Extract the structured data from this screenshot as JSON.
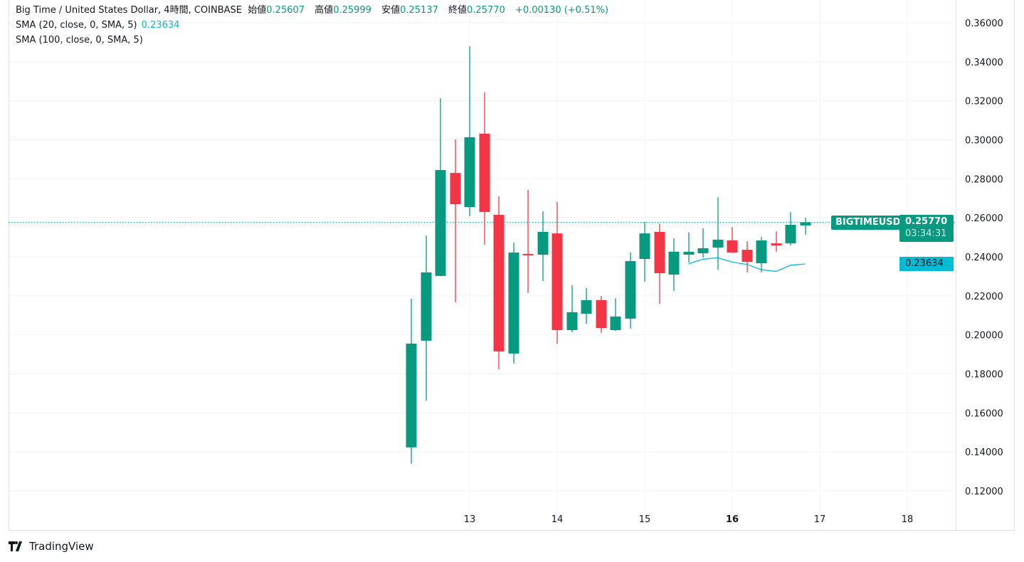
{
  "header": {
    "symbol_title": "Big Time / United States Dollar, 4時間, COINBASE",
    "open_label": "始値",
    "open": "0.25607",
    "high_label": "高値",
    "high": "0.25999",
    "low_label": "安値",
    "low": "0.25137",
    "close_label": "終値",
    "close": "0.25770",
    "change": "+0.00130 (+0.51%)"
  },
  "indicators": [
    {
      "label": "SMA (20, close, 0, SMA, 5)",
      "value": "0.23634"
    },
    {
      "label": "SMA (100, close, 0, SMA, 5)",
      "value": ""
    }
  ],
  "price_tag": {
    "symbol": "BIGTIMEUSD",
    "price": "0.25770",
    "countdown": "03:34:31"
  },
  "sma_tag": "0.23634",
  "brand": "TradingView",
  "colors": {
    "up": "#089981",
    "down": "#f23645",
    "sma20": "#00bcd4",
    "grid": "#f0f3fa"
  },
  "chart_data": {
    "type": "candlestick",
    "interval": "4h",
    "ylim": [
      0.11,
      0.365
    ],
    "y_ticks": [
      "0.36000",
      "0.34000",
      "0.32000",
      "0.30000",
      "0.28000",
      "0.26000",
      "0.24000",
      "0.22000",
      "0.20000",
      "0.18000",
      "0.16000",
      "0.14000",
      "0.12000"
    ],
    "x_ticks": [
      {
        "label": "13",
        "day": 13,
        "bold": false
      },
      {
        "label": "14",
        "day": 14,
        "bold": false
      },
      {
        "label": "15",
        "day": 15,
        "bold": false
      },
      {
        "label": "16",
        "day": 16,
        "bold": true
      },
      {
        "label": "17",
        "day": 17,
        "bold": false
      },
      {
        "label": "18",
        "day": 18,
        "bold": false
      }
    ],
    "grid": true,
    "candles": [
      {
        "t": "12 08:00",
        "o": 0.1423,
        "h": 0.2185,
        "l": 0.1339,
        "c": 0.1955
      },
      {
        "t": "12 12:00",
        "o": 0.197,
        "h": 0.2509,
        "l": 0.1663,
        "c": 0.232
      },
      {
        "t": "12 16:00",
        "o": 0.2302,
        "h": 0.3213,
        "l": 0.23,
        "c": 0.2845
      },
      {
        "t": "12 20:00",
        "o": 0.283,
        "h": 0.3002,
        "l": 0.2167,
        "c": 0.267
      },
      {
        "t": "13 00:00",
        "o": 0.2655,
        "h": 0.348,
        "l": 0.2608,
        "c": 0.3013
      },
      {
        "t": "13 04:00",
        "o": 0.3031,
        "h": 0.3243,
        "l": 0.2462,
        "c": 0.263
      },
      {
        "t": "13 08:00",
        "o": 0.2615,
        "h": 0.271,
        "l": 0.1824,
        "c": 0.1915
      },
      {
        "t": "13 12:00",
        "o": 0.1904,
        "h": 0.2473,
        "l": 0.1853,
        "c": 0.2422
      },
      {
        "t": "13 16:00",
        "o": 0.2415,
        "h": 0.2743,
        "l": 0.2214,
        "c": 0.2408
      },
      {
        "t": "13 20:00",
        "o": 0.2411,
        "h": 0.2633,
        "l": 0.2276,
        "c": 0.2528
      },
      {
        "t": "14 00:00",
        "o": 0.252,
        "h": 0.2681,
        "l": 0.1955,
        "c": 0.2024
      },
      {
        "t": "14 04:00",
        "o": 0.2024,
        "h": 0.2254,
        "l": 0.2013,
        "c": 0.2116
      },
      {
        "t": "14 08:00",
        "o": 0.2108,
        "h": 0.224,
        "l": 0.2057,
        "c": 0.2178
      },
      {
        "t": "14 12:00",
        "o": 0.2178,
        "h": 0.2199,
        "l": 0.201,
        "c": 0.2035
      },
      {
        "t": "14 16:00",
        "o": 0.2024,
        "h": 0.2188,
        "l": 0.202,
        "c": 0.2094
      },
      {
        "t": "14 20:00",
        "o": 0.2083,
        "h": 0.2422,
        "l": 0.2032,
        "c": 0.2378
      },
      {
        "t": "15 00:00",
        "o": 0.2389,
        "h": 0.2579,
        "l": 0.2272,
        "c": 0.252
      },
      {
        "t": "15 04:00",
        "o": 0.2528,
        "h": 0.2571,
        "l": 0.2159,
        "c": 0.2316
      },
      {
        "t": "15 08:00",
        "o": 0.2309,
        "h": 0.2495,
        "l": 0.2225,
        "c": 0.2426
      },
      {
        "t": "15 12:00",
        "o": 0.2411,
        "h": 0.2524,
        "l": 0.2371,
        "c": 0.2426
      },
      {
        "t": "15 16:00",
        "o": 0.2418,
        "h": 0.2546,
        "l": 0.2396,
        "c": 0.2444
      },
      {
        "t": "15 20:00",
        "o": 0.2447,
        "h": 0.2706,
        "l": 0.2334,
        "c": 0.2488
      },
      {
        "t": "16 00:00",
        "o": 0.2484,
        "h": 0.2553,
        "l": 0.242,
        "c": 0.2422
      },
      {
        "t": "16 04:00",
        "o": 0.2436,
        "h": 0.248,
        "l": 0.232,
        "c": 0.2374
      },
      {
        "t": "16 08:00",
        "o": 0.2367,
        "h": 0.2502,
        "l": 0.232,
        "c": 0.2484
      },
      {
        "t": "16 12:00",
        "o": 0.2469,
        "h": 0.2531,
        "l": 0.2426,
        "c": 0.2458
      },
      {
        "t": "16 16:00",
        "o": 0.2469,
        "h": 0.263,
        "l": 0.2458,
        "c": 0.2564
      },
      {
        "t": "16 20:00",
        "o": 0.25607,
        "h": 0.25999,
        "l": 0.25137,
        "c": 0.2577
      }
    ],
    "sma20": [
      {
        "t": "15 12:00",
        "v": 0.2364
      },
      {
        "t": "15 16:00",
        "v": 0.2388
      },
      {
        "t": "15 20:00",
        "v": 0.2395
      },
      {
        "t": "16 00:00",
        "v": 0.2373
      },
      {
        "t": "16 04:00",
        "v": 0.2361
      },
      {
        "t": "16 08:00",
        "v": 0.2334
      },
      {
        "t": "16 12:00",
        "v": 0.2325
      },
      {
        "t": "16 16:00",
        "v": 0.2357
      },
      {
        "t": "16 20:00",
        "v": 0.23634
      }
    ],
    "last_price": 0.2577
  }
}
